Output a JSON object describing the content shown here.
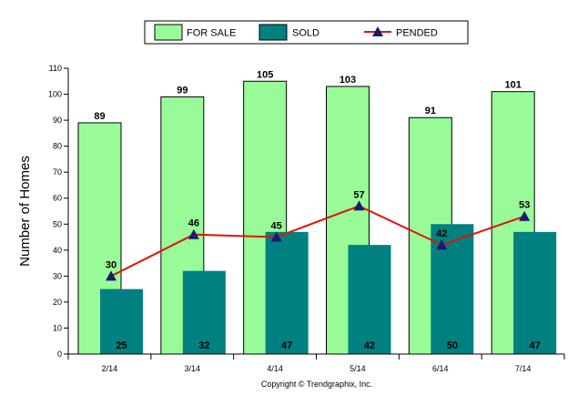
{
  "chart_data": {
    "type": "bar",
    "categories": [
      "2/14",
      "3/14",
      "4/14",
      "5/14",
      "6/14",
      "7/14"
    ],
    "series": [
      {
        "name": "FOR SALE",
        "type": "bar",
        "color": "#98fb98",
        "values": [
          89,
          99,
          105,
          103,
          91,
          101
        ]
      },
      {
        "name": "SOLD",
        "type": "bar",
        "color": "#008080",
        "values": [
          25,
          32,
          47,
          42,
          50,
          47
        ]
      },
      {
        "name": "PENDED",
        "type": "line",
        "color": "#e0140a",
        "marker_color": "#1a1a6e",
        "values": [
          30,
          46,
          45,
          57,
          42,
          53
        ]
      }
    ],
    "ylabel": "Number of Homes",
    "xlabel": "",
    "ylim": [
      0,
      110
    ],
    "yticks": [
      0,
      10,
      20,
      30,
      40,
      50,
      60,
      70,
      80,
      90,
      100,
      110
    ],
    "legend_position": "top-center",
    "grid": false
  },
  "footer": {
    "copyright": "Copyright © Trendgraphix, Inc."
  }
}
